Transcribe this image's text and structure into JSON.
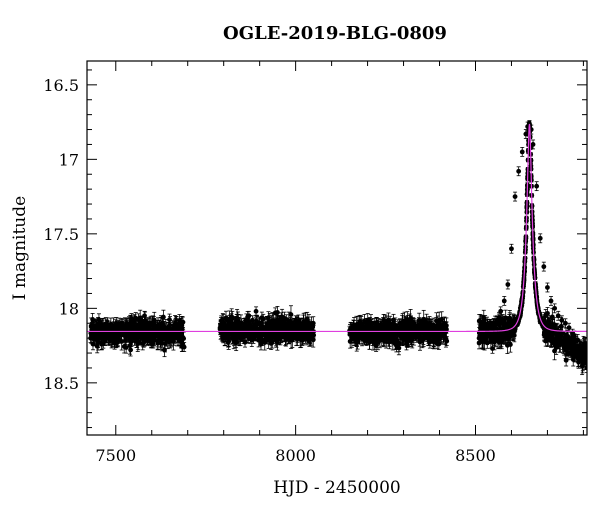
{
  "chart_data": {
    "type": "scatter",
    "title": "OGLE-2019-BLG-0809",
    "xlabel": "HJD - 2450000",
    "ylabel": "I magnitude",
    "xlim": [
      7420,
      8810
    ],
    "ylim": [
      18.85,
      16.34
    ],
    "y_inverted": true,
    "x_ticks": [
      7500,
      8000,
      8500
    ],
    "x_tick_labels": [
      "7500",
      "8000",
      "8500"
    ],
    "y_ticks": [
      16.5,
      17,
      17.5,
      18,
      18.5
    ],
    "y_tick_labels": [
      "16.5",
      "17",
      "17.5",
      "18",
      "18.5"
    ],
    "grid": false,
    "colors": {
      "data": "#000000",
      "model": "#e040e0",
      "axes": "#000000"
    },
    "model": {
      "name": "",
      "baseline_mag": 18.155,
      "peak_mag": 16.77,
      "t0": 8650,
      "tE": 17
    },
    "observing_seasons": [
      {
        "x_range": [
          7430,
          7690
        ],
        "mean_mag": 18.16,
        "scatter": 0.07
      },
      {
        "x_range": [
          7790,
          8050
        ],
        "mean_mag": 18.15,
        "scatter": 0.065
      },
      {
        "x_range": [
          8150,
          8420
        ],
        "mean_mag": 18.16,
        "scatter": 0.065
      },
      {
        "x_range": [
          8510,
          8810
        ],
        "mean_mag": 18.16,
        "scatter": 0.07,
        "contains_peak": true
      }
    ],
    "series": [
      {
        "type": "scatter",
        "x": [
          7430,
          7440,
          7450,
          7460,
          7470,
          7480,
          7490,
          7500,
          7510,
          7520,
          7530,
          7540,
          7550,
          7560,
          7570,
          7580,
          7590,
          7600,
          7610,
          7620,
          7630,
          7640,
          7650,
          7660,
          7670,
          7680,
          7690,
          7790,
          7800,
          7810,
          7820,
          7830,
          7840,
          7850,
          7860,
          7870,
          7880,
          7890,
          7900,
          7910,
          7920,
          7930,
          7940,
          7950,
          7960,
          7970,
          7980,
          7990,
          8000,
          8010,
          8020,
          8030,
          8040,
          8050,
          8150,
          8160,
          8170,
          8180,
          8190,
          8200,
          8210,
          8220,
          8230,
          8240,
          8250,
          8260,
          8270,
          8280,
          8290,
          8300,
          8310,
          8320,
          8330,
          8340,
          8350,
          8360,
          8370,
          8380,
          8390,
          8400,
          8410,
          8420,
          8510,
          8520,
          8530,
          8540,
          8550,
          8560,
          8570,
          8580,
          8590,
          8600,
          8610,
          8620,
          8630,
          8640,
          8645,
          8650,
          8655,
          8660,
          8670,
          8680,
          8690,
          8700,
          8710,
          8720,
          8730,
          8740,
          8750,
          8760,
          8770,
          8780,
          8790,
          8800,
          8810
        ],
        "y": [
          18.2,
          18.18,
          18.15,
          18.2,
          18.17,
          18.13,
          18.18,
          18.14,
          18.12,
          18.16,
          18.1,
          18.15,
          18.08,
          18.13,
          18.1,
          18.05,
          18.14,
          18.1,
          18.12,
          18.16,
          18.1,
          18.15,
          18.2,
          18.17,
          18.15,
          18.22,
          18.26,
          18.13,
          18.1,
          18.08,
          18.12,
          18.16,
          18.13,
          18.1,
          18.11,
          18.05,
          18.08,
          18.02,
          18.1,
          18.07,
          18.12,
          18.15,
          18.1,
          18.12,
          18.06,
          18.1,
          18.14,
          18.1,
          18.08,
          18.12,
          18.13,
          18.15,
          18.17,
          18.18,
          18.15,
          18.16,
          18.14,
          18.17,
          18.13,
          18.15,
          18.1,
          18.14,
          18.17,
          18.12,
          18.16,
          18.18,
          18.13,
          18.15,
          18.1,
          18.12,
          18.13,
          18.08,
          18.1,
          18.12,
          18.1,
          18.13,
          18.15,
          18.13,
          18.17,
          18.2,
          18.18,
          18.22,
          18.2,
          18.18,
          18.15,
          18.14,
          18.12,
          18.08,
          18.02,
          17.95,
          17.84,
          17.6,
          17.25,
          17.08,
          16.95,
          16.83,
          16.78,
          16.77,
          16.8,
          16.9,
          17.18,
          17.53,
          17.72,
          17.86,
          17.95,
          18.0,
          18.05,
          18.08,
          18.1,
          18.13,
          18.17,
          18.22,
          18.3,
          18.36,
          18.4
        ]
      }
    ]
  }
}
